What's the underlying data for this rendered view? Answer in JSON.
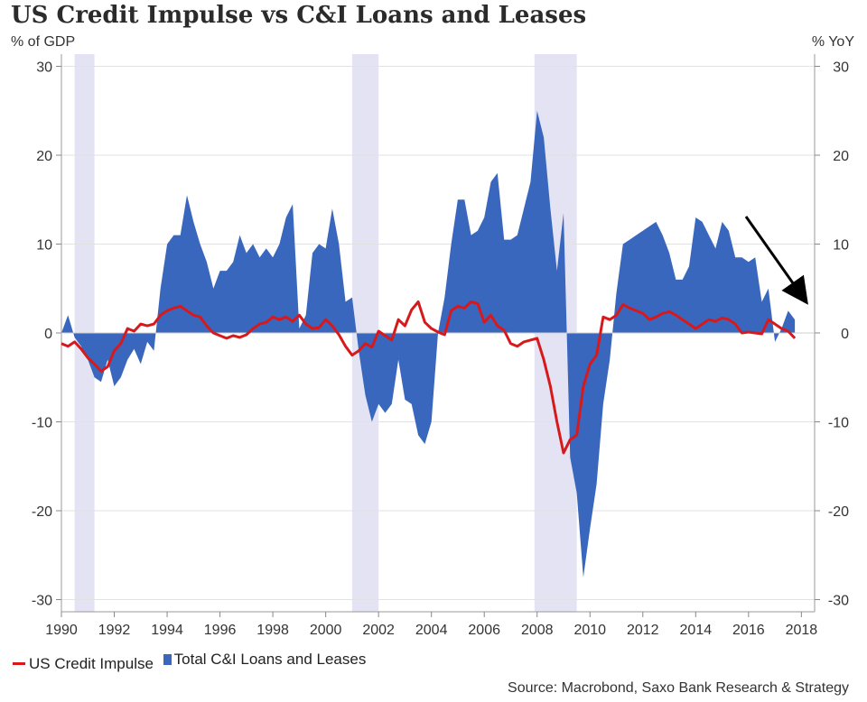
{
  "title": "US Credit Impulse vs C&I Loans and Leases",
  "left_unit": "% of GDP",
  "right_unit": "% YoY",
  "source": "Source: Macrobond, Saxo Bank Research & Strategy",
  "chart_data": {
    "type": "area",
    "xlim": [
      1990,
      2018.5
    ],
    "ylim": [
      -31,
      31
    ],
    "y_ticks": [
      "30",
      "20",
      "10",
      "0",
      "-10",
      "-20",
      "-30"
    ],
    "x_ticks": [
      "1990",
      "1992",
      "1994",
      "1996",
      "1998",
      "2000",
      "2002",
      "2004",
      "2006",
      "2008",
      "2010",
      "2012",
      "2014",
      "2016",
      "2018"
    ],
    "grid": true,
    "legend_position": "bottom-left",
    "recessions": [
      [
        1990.5,
        1991.25
      ],
      [
        2001.0,
        2002.0
      ],
      [
        2007.9,
        2009.5
      ]
    ],
    "colors": {
      "impulse": "#d7191c",
      "loans": "#3a67be",
      "recession": "#e3e3f3"
    },
    "series": [
      {
        "name": "US Credit Impulse",
        "kind": "line",
        "x": [
          1990,
          1990.25,
          1990.5,
          1990.75,
          1991,
          1991.25,
          1991.5,
          1991.75,
          1992,
          1992.25,
          1992.5,
          1992.75,
          1993,
          1993.25,
          1993.5,
          1993.75,
          1994,
          1994.25,
          1994.5,
          1994.75,
          1995,
          1995.25,
          1995.5,
          1995.75,
          1996,
          1996.25,
          1996.5,
          1996.75,
          1997,
          1997.25,
          1997.5,
          1997.75,
          1998,
          1998.25,
          1998.5,
          1998.75,
          1999,
          1999.25,
          1999.5,
          1999.75,
          2000,
          2000.25,
          2000.5,
          2000.75,
          2001,
          2001.25,
          2001.5,
          2001.75,
          2002,
          2002.25,
          2002.5,
          2002.75,
          2003,
          2003.25,
          2003.5,
          2003.75,
          2004,
          2004.25,
          2004.5,
          2004.75,
          2005,
          2005.25,
          2005.5,
          2005.75,
          2006,
          2006.25,
          2006.5,
          2006.75,
          2007,
          2007.25,
          2007.5,
          2007.75,
          2008,
          2008.25,
          2008.5,
          2008.75,
          2009,
          2009.25,
          2009.5,
          2009.75,
          2010,
          2010.25,
          2010.5,
          2010.75,
          2011,
          2011.25,
          2011.5,
          2011.75,
          2012,
          2012.25,
          2012.5,
          2012.75,
          2013,
          2013.25,
          2013.5,
          2013.75,
          2014,
          2014.25,
          2014.5,
          2014.75,
          2015,
          2015.25,
          2015.5,
          2015.75,
          2016,
          2016.25,
          2016.5,
          2016.75,
          2017,
          2017.25,
          2017.5,
          2017.75
        ],
        "values": [
          -1.2,
          -1.5,
          -1.0,
          -1.8,
          -2.8,
          -3.5,
          -4.3,
          -3.8,
          -2.0,
          -1.2,
          0.5,
          0.2,
          1.0,
          0.8,
          1.0,
          2.0,
          2.5,
          2.8,
          3.0,
          2.5,
          2.0,
          1.8,
          0.8,
          0.0,
          -0.3,
          -0.6,
          -0.3,
          -0.5,
          -0.2,
          0.5,
          1.0,
          1.2,
          1.8,
          1.5,
          1.8,
          1.3,
          2.0,
          1.0,
          0.5,
          0.6,
          1.5,
          0.8,
          -0.2,
          -1.5,
          -2.5,
          -2.0,
          -1.2,
          -1.6,
          0.2,
          -0.3,
          -0.8,
          1.5,
          0.8,
          2.6,
          3.5,
          1.2,
          0.5,
          0.1,
          -0.2,
          2.5,
          3.0,
          2.8,
          3.5,
          3.3,
          1.2,
          2.0,
          0.8,
          0.3,
          -1.2,
          -1.5,
          -1.0,
          -0.8,
          -0.6,
          -3.0,
          -6.0,
          -10.0,
          -13.5,
          -12.0,
          -11.5,
          -6.0,
          -3.5,
          -2.5,
          1.8,
          1.5,
          2.0,
          3.2,
          2.8,
          2.5,
          2.2,
          1.5,
          1.8,
          2.2,
          2.4,
          2.0,
          1.5,
          1.0,
          0.5,
          1.0,
          1.5,
          1.3,
          1.7,
          1.5,
          1.0,
          0.0,
          0.1,
          0.0,
          -0.1,
          1.5,
          1.0,
          0.5,
          0.2,
          -0.6
        ]
      },
      {
        "name": "Total C&I Loans and Leases",
        "kind": "area",
        "x": [
          1990,
          1990.25,
          1990.5,
          1990.75,
          1991,
          1991.25,
          1991.5,
          1991.75,
          1992,
          1992.25,
          1992.5,
          1992.75,
          1993,
          1993.25,
          1993.5,
          1993.75,
          1994,
          1994.25,
          1994.5,
          1994.75,
          1995,
          1995.25,
          1995.5,
          1995.75,
          1996,
          1996.25,
          1996.5,
          1996.75,
          1997,
          1997.25,
          1997.5,
          1997.75,
          1998,
          1998.25,
          1998.5,
          1998.75,
          1999,
          1999.25,
          1999.5,
          1999.75,
          2000,
          2000.25,
          2000.5,
          2000.75,
          2001,
          2001.25,
          2001.5,
          2001.75,
          2002,
          2002.25,
          2002.5,
          2002.75,
          2003,
          2003.25,
          2003.5,
          2003.75,
          2004,
          2004.25,
          2004.5,
          2004.75,
          2005,
          2005.25,
          2005.5,
          2005.75,
          2006,
          2006.25,
          2006.5,
          2006.75,
          2007,
          2007.25,
          2007.5,
          2007.75,
          2008,
          2008.25,
          2008.5,
          2008.75,
          2009,
          2009.25,
          2009.5,
          2009.75,
          2010,
          2010.25,
          2010.5,
          2010.75,
          2011,
          2011.25,
          2011.5,
          2011.75,
          2012,
          2012.25,
          2012.5,
          2012.75,
          2013,
          2013.25,
          2013.5,
          2013.75,
          2014,
          2014.25,
          2014.5,
          2014.75,
          2015,
          2015.25,
          2015.5,
          2015.75,
          2016,
          2016.25,
          2016.5,
          2016.75,
          2017,
          2017.25,
          2017.5,
          2017.75
        ],
        "values": [
          0.0,
          2.0,
          -0.5,
          -1.5,
          -3.0,
          -5.0,
          -5.5,
          -3.0,
          -6.0,
          -5.0,
          -3.0,
          -1.8,
          -3.5,
          -1.0,
          -2.0,
          5.0,
          10.0,
          11.0,
          11.0,
          15.5,
          12.5,
          10.0,
          8.0,
          5.0,
          7.0,
          7.0,
          8.0,
          11.0,
          9.0,
          10.0,
          8.5,
          9.5,
          8.5,
          10.0,
          13.0,
          14.5,
          0.5,
          2.0,
          9.0,
          10.0,
          9.5,
          14.0,
          10.0,
          3.5,
          4.0,
          -2.0,
          -7.0,
          -10.0,
          -8.0,
          -9.0,
          -8.0,
          -3.0,
          -7.5,
          -8.0,
          -11.5,
          -12.5,
          -10.0,
          0.0,
          4.0,
          10.0,
          15.0,
          15.0,
          11.0,
          11.5,
          13.0,
          17.0,
          18.0,
          10.5,
          10.5,
          11.0,
          14.0,
          17.0,
          25.0,
          22.0,
          14.0,
          7.0,
          13.5,
          -14.0,
          -18.0,
          -27.5,
          -22.0,
          -17.0,
          -8.0,
          -3.0,
          4.5,
          10.0,
          10.5,
          11.0,
          11.5,
          12.0,
          12.5,
          11.0,
          9.0,
          6.0,
          6.0,
          7.5,
          13.0,
          12.5,
          11.0,
          9.5,
          12.5,
          11.5,
          8.5,
          8.5,
          8.0,
          8.5,
          3.5,
          5.0,
          -1.0,
          0.5,
          2.5,
          1.5
        ]
      }
    ]
  }
}
